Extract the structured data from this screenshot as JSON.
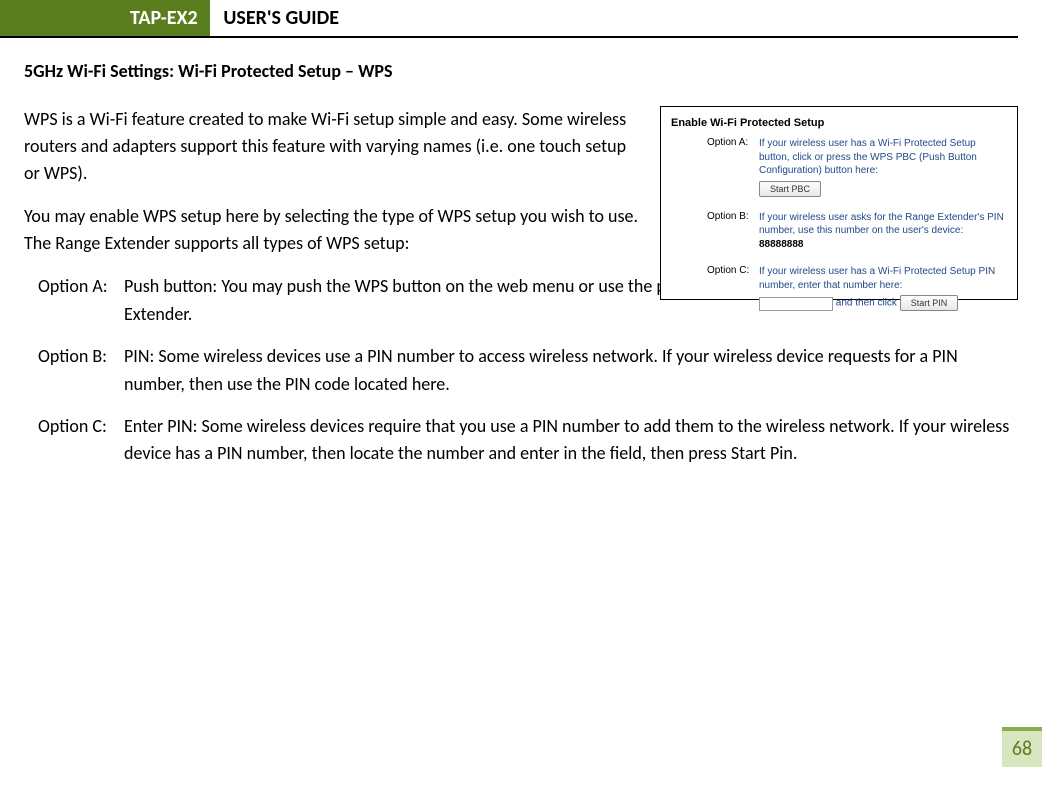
{
  "header": {
    "badge": "TAP-EX2",
    "title": "USER'S GUIDE"
  },
  "section_heading": "5GHz Wi-Fi Settings: Wi-Fi Protected Setup – WPS",
  "intro_para_1": "WPS is a Wi-Fi feature created to make Wi-Fi setup simple and easy. Some wireless routers and adapters support this feature with varying names (i.e. one touch setup or WPS).",
  "intro_para_2": "You may enable WPS setup here by selecting the type of WPS setup you wish to use. The Range Extender supports all types of WPS setup:",
  "options": {
    "a": {
      "label": "Option A:",
      "text": "Push button: You may push the WPS button on the web menu or use the physical button on the back of the Range Extender."
    },
    "b": {
      "label": "Option B:",
      "text": "PIN: Some wireless devices use a PIN number to access wireless network. If your wireless device requests for a PIN number, then use the PIN code located here."
    },
    "c": {
      "label": "Option C:",
      "text": "Enter PIN: Some wireless devices require that you use a PIN number to add them to the wireless network. If your wireless device has a PIN number, then locate the number and enter in the field, then press Start Pin."
    }
  },
  "screenshot": {
    "title": "Enable Wi-Fi Protected Setup",
    "optA": {
      "label": "Option A:",
      "text": "If your wireless user has a Wi-Fi Protected Setup button, click or press the WPS PBC (Push Button Configuration) button here:",
      "button": "Start PBC"
    },
    "optB": {
      "label": "Option B:",
      "text_prefix": "If your wireless user asks for the Range Extender's PIN number, use this number on the user's device: ",
      "pin": "88888888"
    },
    "optC": {
      "label": "Option C:",
      "text": "If your wireless user has a Wi-Fi Protected Setup PIN number, enter that number here:",
      "and_then": " and then click ",
      "button": "Start PIN"
    }
  },
  "page_number": "68",
  "colors": {
    "olive": "#5a7d1e",
    "olive_light": "#8aad4a",
    "olive_bg": "#d8e6c0",
    "link_blue": "#214a8a"
  }
}
